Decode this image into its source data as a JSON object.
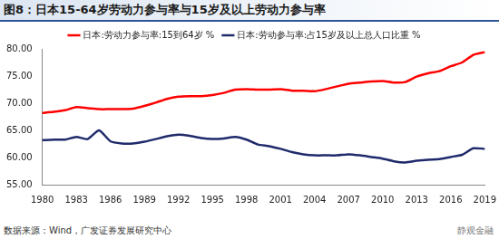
{
  "chart_data": {
    "type": "line",
    "title": "图8：日本15-64岁劳动力参与率与15岁及以上劳动力参与率",
    "source": "数据来源：Wind，广发证券发展研究中心",
    "watermark": "静观金融",
    "categories": [
      "1980",
      null,
      null,
      "1983",
      null,
      null,
      "1986",
      null,
      null,
      "1989",
      null,
      null,
      "1992",
      null,
      null,
      "1995",
      null,
      null,
      "1998",
      null,
      null,
      "2001",
      null,
      null,
      "2004",
      null,
      null,
      "2007",
      null,
      null,
      "2010",
      null,
      null,
      "2013",
      null,
      null,
      "2016",
      null,
      null,
      "2019"
    ],
    "series": [
      {
        "name": "日本:劳动力参与率:15到64岁 %",
        "color": "#ff0000",
        "values": [
          68.2,
          68.4,
          68.7,
          69.3,
          69.1,
          68.9,
          68.9,
          68.9,
          69.0,
          69.5,
          70.1,
          70.8,
          71.2,
          71.3,
          71.3,
          71.5,
          71.9,
          72.5,
          72.6,
          72.5,
          72.5,
          72.6,
          72.3,
          72.3,
          72.2,
          72.6,
          73.1,
          73.6,
          73.8,
          74.0,
          74.1,
          73.8,
          73.9,
          74.9,
          75.5,
          75.9,
          76.8,
          77.5,
          78.9,
          79.4
        ]
      },
      {
        "name": "日本:劳动参与率:占15岁及以上总人口比重 %",
        "color": "#1f2a6b",
        "values": [
          63.2,
          63.3,
          63.3,
          63.8,
          63.4,
          65.0,
          63.0,
          62.6,
          62.6,
          62.9,
          63.4,
          63.9,
          64.2,
          64.0,
          63.6,
          63.4,
          63.5,
          63.8,
          63.3,
          62.4,
          62.1,
          61.6,
          61.0,
          60.6,
          60.4,
          60.4,
          60.4,
          60.6,
          60.4,
          60.1,
          59.8,
          59.3,
          59.1,
          59.4,
          59.6,
          59.7,
          60.1,
          60.5,
          61.7,
          61.6
        ]
      }
    ],
    "ylim": [
      55,
      80
    ],
    "yticks": [
      {
        "value": 55,
        "label": "55.00"
      },
      {
        "value": 60,
        "label": "60.00"
      },
      {
        "value": 65,
        "label": "65.00"
      },
      {
        "value": 70,
        "label": "70.00"
      },
      {
        "value": 75,
        "label": "75.00"
      },
      {
        "value": 80,
        "label": "80.00"
      }
    ],
    "grid": false,
    "legend": "top"
  }
}
